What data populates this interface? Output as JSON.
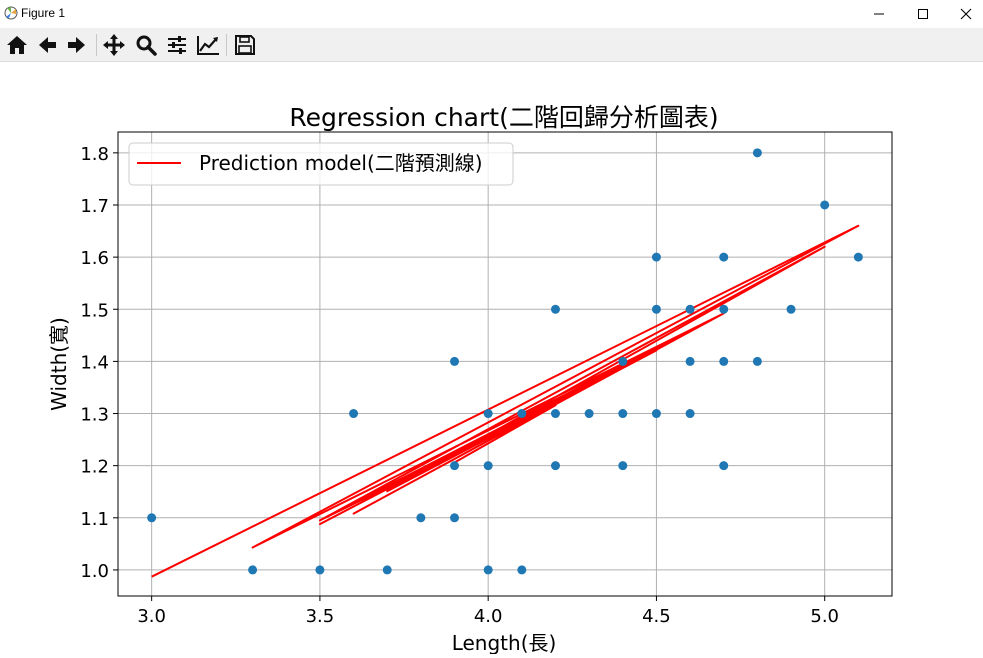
{
  "window": {
    "title": "Figure 1",
    "icons": [
      "matplotlib-icon",
      "minimize-icon",
      "maximize-icon",
      "close-icon"
    ]
  },
  "toolbar": {
    "buttons": [
      "home-icon",
      "back-arrow-icon",
      "forward-arrow-icon",
      "pan-move-icon",
      "zoom-magnifier-icon",
      "subplots-sliders-icon",
      "edit-axis-icon",
      "save-floppy-icon"
    ]
  },
  "chart_data": {
    "type": "scatter",
    "title": "Regression chart(二階回歸分析圖表)",
    "xlabel": "Length(長)",
    "ylabel": "Width(寬)",
    "xlim": [
      2.9,
      5.2
    ],
    "ylim": [
      0.95,
      1.84
    ],
    "xticks": [
      3.0,
      3.5,
      4.0,
      4.5,
      5.0
    ],
    "xtick_labels": [
      "3.0",
      "3.5",
      "4.0",
      "4.5",
      "5.0"
    ],
    "yticks": [
      1.0,
      1.1,
      1.2,
      1.3,
      1.4,
      1.5,
      1.6,
      1.7,
      1.8
    ],
    "ytick_labels": [
      "1.0",
      "1.1",
      "1.2",
      "1.3",
      "1.4",
      "1.5",
      "1.6",
      "1.7",
      "1.8"
    ],
    "grid": true,
    "legend_position": "top-left",
    "colors": {
      "points": "#1f77b4",
      "line": "#ff0000",
      "grid": "#b0b0b0"
    },
    "scatter_points": [
      [
        3.0,
        1.1
      ],
      [
        3.3,
        1.0
      ],
      [
        3.5,
        1.0
      ],
      [
        3.6,
        1.3
      ],
      [
        3.7,
        1.0
      ],
      [
        3.8,
        1.1
      ],
      [
        3.9,
        1.1
      ],
      [
        3.9,
        1.2
      ],
      [
        3.9,
        1.4
      ],
      [
        4.0,
        1.0
      ],
      [
        4.0,
        1.2
      ],
      [
        4.0,
        1.3
      ],
      [
        4.1,
        1.0
      ],
      [
        4.1,
        1.3
      ],
      [
        4.2,
        1.2
      ],
      [
        4.2,
        1.3
      ],
      [
        4.2,
        1.5
      ],
      [
        4.3,
        1.3
      ],
      [
        4.4,
        1.2
      ],
      [
        4.4,
        1.3
      ],
      [
        4.4,
        1.4
      ],
      [
        4.5,
        1.3
      ],
      [
        4.5,
        1.5
      ],
      [
        4.5,
        1.6
      ],
      [
        4.6,
        1.3
      ],
      [
        4.6,
        1.4
      ],
      [
        4.6,
        1.5
      ],
      [
        4.7,
        1.2
      ],
      [
        4.7,
        1.4
      ],
      [
        4.7,
        1.5
      ],
      [
        4.7,
        1.6
      ],
      [
        4.8,
        1.4
      ],
      [
        4.8,
        1.8
      ],
      [
        4.9,
        1.5
      ],
      [
        5.0,
        1.7
      ],
      [
        5.1,
        1.6
      ]
    ],
    "series": [
      {
        "name": "Prediction model(二階預測線)",
        "x": [
          3.0,
          5.1,
          3.3,
          4.7,
          3.5,
          4.6,
          3.6,
          4.7,
          3.5,
          5.0,
          3.7,
          4.5,
          3.5,
          4.2,
          3.9
        ],
        "y": [
          0.987,
          1.66,
          1.043,
          1.492,
          1.088,
          1.458,
          1.108,
          1.492,
          1.095,
          1.62,
          1.151,
          1.421,
          1.095,
          1.316,
          1.206
        ]
      }
    ]
  }
}
